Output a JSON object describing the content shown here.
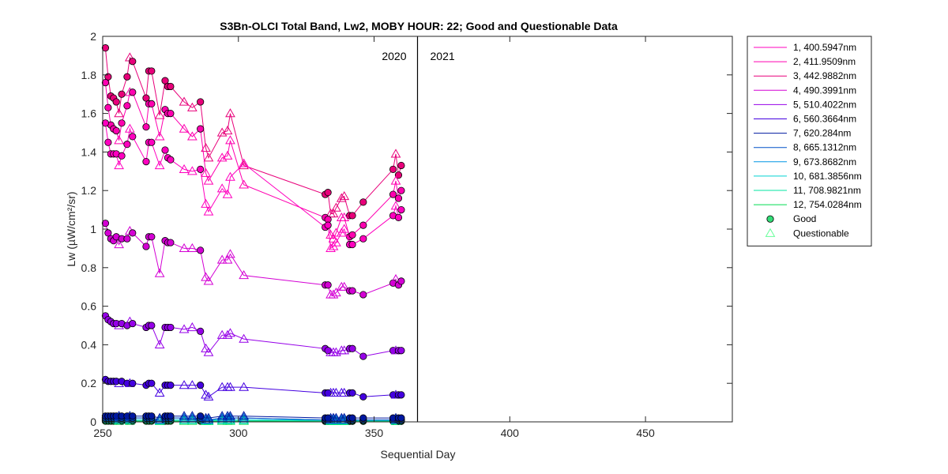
{
  "chart_data": {
    "type": "line",
    "title": "S3Bn-OLCI Total Band,  Lw2, MOBY HOUR: 22;  Good and Questionable Data",
    "xlabel": "Sequential Day",
    "ylabel": "Lw (µW/cm²/sr)",
    "xlim": [
      250,
      482
    ],
    "ylim": [
      0,
      2
    ],
    "xticks": [
      250,
      300,
      350,
      400,
      450
    ],
    "yticks": [
      0,
      0.2,
      0.4,
      0.6,
      0.8,
      1,
      1.2,
      1.4,
      1.6,
      1.8,
      2
    ],
    "ytick_labels": [
      "0",
      "0.2",
      "0.4",
      "0.6",
      "0.8",
      "1",
      "1.2",
      "1.4",
      "1.6",
      "1.8",
      "2"
    ],
    "grid": false,
    "legend_position": "outside-right",
    "year_divider_x": 366,
    "year_labels": [
      "2020",
      "2021"
    ],
    "x": [
      251,
      252,
      253,
      254,
      255,
      256,
      257,
      259,
      260,
      261,
      263,
      266,
      267,
      268,
      271,
      273,
      274,
      275,
      280,
      283,
      286,
      288,
      289,
      294,
      296,
      297,
      302,
      332,
      333,
      334,
      335,
      336,
      338,
      339,
      341,
      342,
      346,
      357,
      358,
      359,
      360
    ],
    "series": [
      {
        "name": "1, 400.5947nm",
        "color": "#ff00bf",
        "values": [
          1.55,
          1.45,
          1.39,
          1.39,
          1.39,
          1.33,
          1.38,
          1.44,
          1.52,
          1.48,
          null,
          1.35,
          1.45,
          1.45,
          1.33,
          1.41,
          1.37,
          1.36,
          1.31,
          1.3,
          1.31,
          1.13,
          1.09,
          1.21,
          1.18,
          1.27,
          1.34,
          1.01,
          1.02,
          0.9,
          0.91,
          0.93,
          0.98,
          1.0,
          0.92,
          0.92,
          0.95,
          1.07,
          1.12,
          1.06,
          1.1
        ]
      },
      {
        "name": "2, 411.9509nm",
        "color": "#ff00b0",
        "values": [
          1.76,
          1.63,
          1.54,
          1.52,
          1.51,
          1.46,
          1.55,
          1.64,
          1.71,
          1.71,
          null,
          1.53,
          1.65,
          1.65,
          1.48,
          1.62,
          1.6,
          1.6,
          1.52,
          1.48,
          1.52,
          1.29,
          1.25,
          1.37,
          1.38,
          1.46,
          1.23,
          1.06,
          1.05,
          0.97,
          0.95,
          0.98,
          1.06,
          1.06,
          0.96,
          0.97,
          1.02,
          1.18,
          1.25,
          1.16,
          1.2
        ]
      },
      {
        "name": "3, 442.9882nm",
        "color": "#e8007a",
        "values": [
          1.94,
          1.79,
          1.69,
          1.68,
          1.66,
          1.6,
          1.7,
          1.79,
          1.89,
          1.87,
          null,
          1.68,
          1.82,
          1.82,
          1.59,
          1.77,
          1.74,
          1.74,
          1.66,
          1.63,
          1.66,
          1.42,
          1.37,
          1.5,
          1.51,
          1.6,
          1.33,
          1.18,
          1.19,
          1.08,
          1.08,
          1.11,
          1.16,
          1.17,
          1.07,
          1.07,
          1.14,
          1.31,
          1.39,
          1.28,
          1.33
        ]
      },
      {
        "name": "4, 490.3991nm",
        "color": "#d400d4",
        "values": [
          1.03,
          0.98,
          0.95,
          0.94,
          0.96,
          0.92,
          0.95,
          0.95,
          0.99,
          0.98,
          null,
          0.91,
          0.96,
          0.96,
          0.77,
          0.94,
          0.93,
          0.93,
          0.9,
          0.9,
          0.89,
          0.75,
          0.73,
          0.84,
          0.84,
          0.87,
          0.76,
          0.71,
          0.71,
          0.66,
          0.66,
          0.67,
          0.7,
          0.7,
          0.68,
          0.68,
          0.66,
          0.72,
          0.74,
          0.71,
          0.73
        ]
      },
      {
        "name": "5, 510.4022nm",
        "color": "#9600e8",
        "values": [
          0.55,
          0.53,
          0.52,
          0.51,
          0.51,
          0.5,
          0.51,
          0.5,
          0.52,
          0.51,
          null,
          0.49,
          0.5,
          0.5,
          0.4,
          0.49,
          0.49,
          0.49,
          0.48,
          0.49,
          0.47,
          0.38,
          0.36,
          0.45,
          0.45,
          0.46,
          0.43,
          0.38,
          0.37,
          0.36,
          0.36,
          0.36,
          0.37,
          0.37,
          0.38,
          0.38,
          0.34,
          0.37,
          0.37,
          0.37,
          0.37
        ]
      },
      {
        "name": "6, 560.3664nm",
        "color": "#4400e0",
        "values": [
          0.22,
          0.21,
          0.21,
          0.21,
          0.21,
          0.2,
          0.21,
          0.2,
          0.2,
          0.2,
          null,
          0.19,
          0.2,
          0.2,
          0.15,
          0.19,
          0.19,
          0.19,
          0.19,
          0.19,
          0.19,
          0.14,
          0.13,
          0.18,
          0.18,
          0.18,
          0.18,
          0.15,
          0.15,
          0.15,
          0.15,
          0.15,
          0.15,
          0.15,
          0.15,
          0.15,
          0.13,
          0.14,
          0.14,
          0.14,
          0.14
        ]
      },
      {
        "name": "7,  620.284nm",
        "color": "#0018a0",
        "values": [
          0.03,
          0.03,
          0.03,
          0.03,
          0.03,
          0.03,
          0.03,
          0.03,
          0.03,
          0.03,
          null,
          0.03,
          0.03,
          0.03,
          0.02,
          0.03,
          0.03,
          0.03,
          0.03,
          0.03,
          0.03,
          0.02,
          0.02,
          0.03,
          0.03,
          0.03,
          0.03,
          0.02,
          0.02,
          0.02,
          0.02,
          0.02,
          0.02,
          0.02,
          0.02,
          0.02,
          0.02,
          0.02,
          0.02,
          0.02,
          0.02
        ]
      },
      {
        "name": "8, 665.1312nm",
        "color": "#0050c8",
        "values": [
          0.02,
          0.02,
          0.02,
          0.02,
          0.02,
          0.02,
          0.02,
          0.02,
          0.02,
          0.02,
          null,
          0.02,
          0.02,
          0.02,
          0.01,
          0.02,
          0.02,
          0.02,
          0.02,
          0.02,
          0.02,
          0.01,
          0.01,
          0.02,
          0.02,
          0.02,
          0.02,
          0.01,
          0.01,
          0.01,
          0.01,
          0.01,
          0.01,
          0.01,
          0.01,
          0.01,
          0.01,
          0.01,
          0.01,
          0.01,
          0.01
        ]
      },
      {
        "name": "9, 673.8682nm",
        "color": "#0096e6",
        "values": [
          0.02,
          0.02,
          0.02,
          0.02,
          0.02,
          0.02,
          0.02,
          0.02,
          0.02,
          0.02,
          null,
          0.02,
          0.02,
          0.02,
          0.01,
          0.02,
          0.02,
          0.02,
          0.02,
          0.02,
          0.02,
          0.01,
          0.01,
          0.02,
          0.02,
          0.02,
          0.02,
          0.01,
          0.01,
          0.01,
          0.01,
          0.01,
          0.01,
          0.01,
          0.01,
          0.01,
          0.01,
          0.01,
          0.01,
          0.01,
          0.01
        ]
      },
      {
        "name": "10, 681.3856nm",
        "color": "#00d2d2",
        "values": [
          0.01,
          0.01,
          0.01,
          0.01,
          0.01,
          0.01,
          0.01,
          0.01,
          0.01,
          0.01,
          null,
          0.01,
          0.01,
          0.01,
          0.01,
          0.01,
          0.01,
          0.01,
          0.01,
          0.01,
          0.01,
          0.01,
          0.01,
          0.01,
          0.01,
          0.01,
          0.01,
          0.01,
          0.01,
          0.01,
          0.01,
          0.01,
          0.01,
          0.01,
          0.01,
          0.01,
          0.01,
          0.01,
          0.01,
          0.01,
          0.01
        ]
      },
      {
        "name": "11, 708.9821nm",
        "color": "#00e6a0",
        "values": [
          0.01,
          0.01,
          0.01,
          0.01,
          0.01,
          0.01,
          0.01,
          0.01,
          0.01,
          0.01,
          null,
          0.01,
          0.01,
          0.01,
          0.005,
          0.01,
          0.01,
          0.01,
          0.01,
          0.01,
          0.01,
          0.005,
          0.005,
          0.01,
          0.01,
          0.01,
          0.01,
          0.005,
          0.005,
          0.005,
          0.005,
          0.005,
          0.005,
          0.005,
          0.005,
          0.005,
          0.005,
          0.005,
          0.005,
          0.005,
          0.005
        ]
      },
      {
        "name": "12, 754.0284nm",
        "color": "#00dc50",
        "values": [
          0.004,
          0.004,
          0.004,
          0.004,
          0.004,
          0.004,
          0.004,
          0.004,
          0.004,
          0.004,
          null,
          0.004,
          0.004,
          0.004,
          0.003,
          0.004,
          0.004,
          0.004,
          0.004,
          0.004,
          0.004,
          0.003,
          0.003,
          0.004,
          0.004,
          0.004,
          0.004,
          0.003,
          0.003,
          0.003,
          0.003,
          0.003,
          0.003,
          0.003,
          0.003,
          0.003,
          0.003,
          0.003,
          0.003,
          0.003,
          0.003
        ]
      }
    ],
    "quality_flags": [
      "good",
      "good",
      "good",
      "good",
      "good",
      "questionable",
      "good",
      "good",
      "questionable",
      "good",
      null,
      "good",
      "good",
      "good",
      "questionable",
      "good",
      "good",
      "good",
      "questionable",
      "questionable",
      "good",
      "questionable",
      "questionable",
      "questionable",
      "questionable",
      "questionable",
      "questionable",
      "good",
      "good",
      "questionable",
      "questionable",
      "questionable",
      "questionable",
      "questionable",
      "good",
      "good",
      "good",
      "good",
      "questionable",
      "good",
      "good"
    ],
    "marker_legend": [
      {
        "label": "Good",
        "marker": "circle",
        "fill": "#33dd77",
        "edge": "#000000"
      },
      {
        "label": "Questionable",
        "marker": "triangle",
        "fill": "none",
        "edge": "#66ff99"
      }
    ],
    "colors": {
      "good_edge": "#000000",
      "questionable_marker": "#ff66ff",
      "divider": "#000000"
    }
  }
}
